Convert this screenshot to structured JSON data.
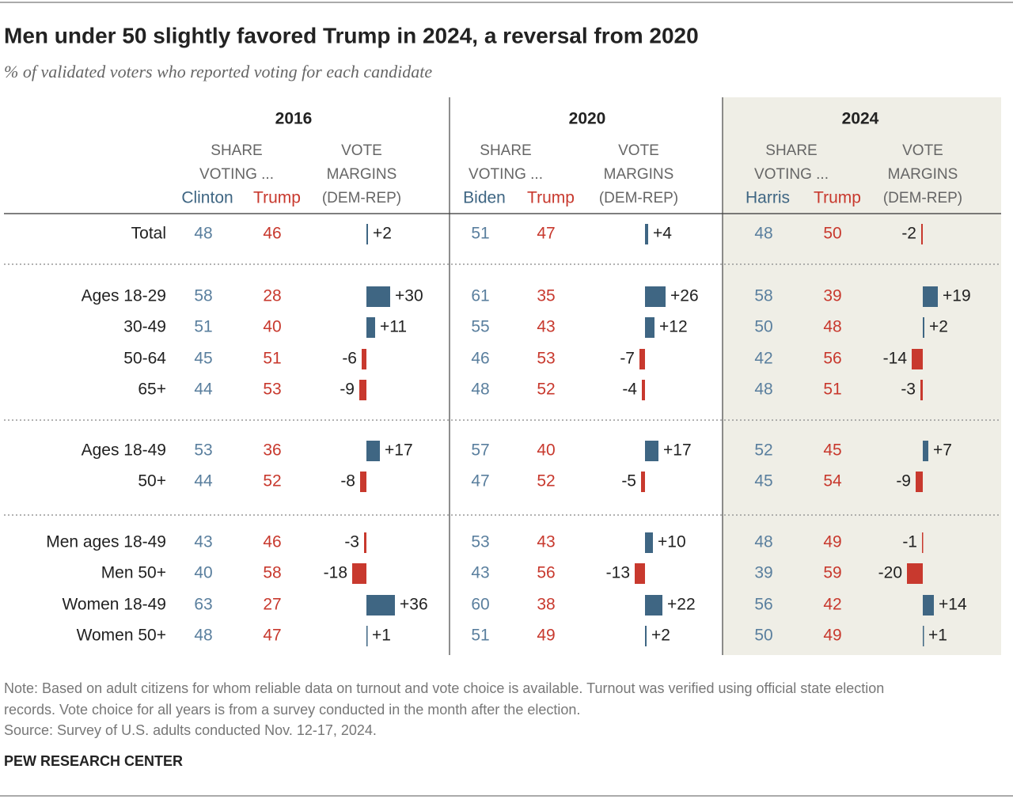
{
  "title": "Men under 50 slightly favored Trump in 2024, a reversal from 2020",
  "subtitle": "% of validated voters who reported voting for each candidate",
  "row_groups": [
    [
      "Total"
    ],
    [
      "Ages 18-29",
      "30-49",
      "50-64",
      "65+"
    ],
    [
      "Ages 18-49",
      "50+"
    ],
    [
      "Men ages 18-49",
      "Men 50+",
      "Women 18-49",
      "Women 50+"
    ]
  ],
  "dem_color": "#3f6683",
  "rep_color": "#c8392e",
  "panels": [
    {
      "year": "2016",
      "share_header": [
        "SHARE",
        "VOTING ..."
      ],
      "margin_header": [
        "VOTE",
        "MARGINS",
        "(DEM-REP)"
      ],
      "dem_name": "Clinton",
      "rep_name": "Trump",
      "dem": [
        [
          48
        ],
        [
          58,
          51,
          45,
          44
        ],
        [
          53,
          44
        ],
        [
          43,
          40,
          63,
          48
        ]
      ],
      "rep": [
        [
          46
        ],
        [
          28,
          40,
          51,
          53
        ],
        [
          36,
          52
        ],
        [
          46,
          58,
          27,
          47
        ]
      ],
      "margins": [
        [
          2
        ],
        [
          30,
          11,
          -6,
          -9
        ],
        [
          17,
          -8
        ],
        [
          -3,
          -18,
          36,
          1
        ]
      ],
      "margin_labels": [
        [
          "+2"
        ],
        [
          "+30",
          "+11",
          "-6",
          "-9"
        ],
        [
          "+17",
          "-8"
        ],
        [
          "-3",
          "-18",
          "+36",
          "+1"
        ]
      ]
    },
    {
      "year": "2020",
      "share_header": [
        "SHARE",
        "VOTING ..."
      ],
      "margin_header": [
        "VOTE",
        "MARGINS",
        "(DEM-REP)"
      ],
      "dem_name": "Biden",
      "rep_name": "Trump",
      "dem": [
        [
          51
        ],
        [
          61,
          55,
          46,
          48
        ],
        [
          57,
          47
        ],
        [
          53,
          43,
          60,
          51
        ]
      ],
      "rep": [
        [
          47
        ],
        [
          35,
          43,
          53,
          52
        ],
        [
          40,
          52
        ],
        [
          43,
          56,
          38,
          49
        ]
      ],
      "margins": [
        [
          4
        ],
        [
          26,
          12,
          -7,
          -4
        ],
        [
          17,
          -5
        ],
        [
          10,
          -13,
          22,
          2
        ]
      ],
      "margin_labels": [
        [
          "+4"
        ],
        [
          "+26",
          "+12",
          "-7",
          "-4"
        ],
        [
          "+17",
          "-5"
        ],
        [
          "+10",
          "-13",
          "+22",
          "+2"
        ]
      ]
    },
    {
      "year": "2024",
      "share_header": [
        "SHARE",
        "VOTING ..."
      ],
      "margin_header": [
        "VOTE",
        "MARGINS",
        "(DEM-REP)"
      ],
      "dem_name": "Harris",
      "rep_name": "Trump",
      "dem": [
        [
          48
        ],
        [
          58,
          50,
          42,
          48
        ],
        [
          52,
          45
        ],
        [
          48,
          39,
          56,
          50
        ]
      ],
      "rep": [
        [
          50
        ],
        [
          39,
          48,
          56,
          51
        ],
        [
          45,
          54
        ],
        [
          49,
          59,
          42,
          49
        ]
      ],
      "margins": [
        [
          -2
        ],
        [
          19,
          2,
          -14,
          -3
        ],
        [
          7,
          -9
        ],
        [
          -1,
          -20,
          14,
          1
        ]
      ],
      "margin_labels": [
        [
          "-2"
        ],
        [
          "+19",
          "+2",
          "-14",
          "-3"
        ],
        [
          "+7",
          "-9"
        ],
        [
          "-1",
          "-20",
          "+14",
          "+1"
        ]
      ]
    }
  ],
  "note": [
    "Note: Based on adult citizens for whom reliable data on turnout and vote choice is available. Turnout was verified using official state election",
    "records. Vote choice for all years is from a survey conducted in the month after the election."
  ],
  "source": "Source: Survey of U.S. adults conducted Nov. 12-17, 2024.",
  "brand": "PEW RESEARCH CENTER"
}
